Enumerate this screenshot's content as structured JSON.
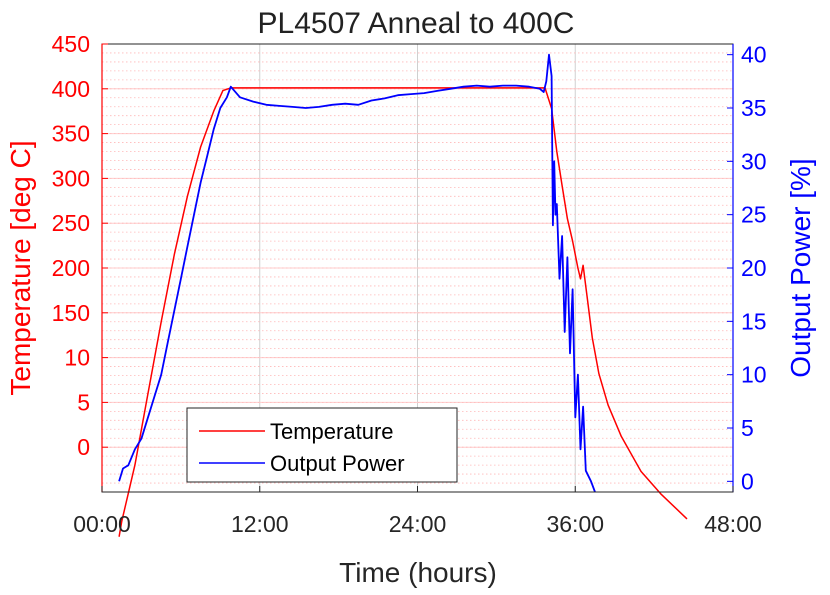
{
  "chart_data": {
    "type": "line",
    "title": "PL4507 Anneal to 400C",
    "xlabel": "Time (hours)",
    "xlim": [
      0,
      48
    ],
    "x_ticks": [
      0,
      12,
      24,
      36,
      48
    ],
    "x_tick_labels": [
      "00:00",
      "12:00",
      "24:00",
      "36:00",
      "48:00"
    ],
    "grid": true,
    "legend_position": "bottom-left",
    "left_axis": {
      "label": "Temperature [deg C]",
      "color": "#ff0000",
      "tick_labels": [
        "0",
        "5",
        "10",
        "150",
        "200",
        "250",
        "300",
        "350",
        "400",
        "450"
      ]
    },
    "right_axis": {
      "label": "Output Power [%]",
      "color": "#0000ff",
      "ylim": [
        -1,
        41
      ],
      "ticks": [
        0,
        5,
        10,
        15,
        20,
        25,
        30,
        35,
        40
      ],
      "tick_labels": [
        "0",
        "5",
        "10",
        "15",
        "20",
        "25",
        "30",
        "35",
        "40"
      ]
    },
    "series": [
      {
        "name": "Temperature",
        "color": "#ff0000",
        "axis": "left",
        "x": [
          1.3,
          1.5,
          2.5,
          3.5,
          4.5,
          5.5,
          6.5,
          7.5,
          8.5,
          9.2,
          9.8,
          12,
          18,
          24,
          30,
          33.7,
          34.2,
          34.6,
          35.0,
          35.4,
          35.8,
          36.2,
          36.4,
          36.6,
          36.9,
          37.3,
          37.8,
          38.5,
          39.5,
          41,
          42.5,
          44.5
        ],
        "values": [
          -100,
          -83,
          -20,
          60,
          140,
          215,
          280,
          335,
          375,
          398,
          401,
          401,
          401,
          401,
          401,
          401,
          378,
          330,
          292,
          255,
          230,
          200,
          188,
          203,
          168,
          122,
          82,
          47,
          12,
          -27,
          -52,
          -80
        ]
      },
      {
        "name": "Output Power",
        "color": "#0000ff",
        "axis": "right",
        "x": [
          1.3,
          1.6,
          2.0,
          2.5,
          3.0,
          3.5,
          4.0,
          4.5,
          5.0,
          5.5,
          6.0,
          6.5,
          7.0,
          7.5,
          8.0,
          8.5,
          9.0,
          9.5,
          9.8,
          10.5,
          11.5,
          12.5,
          13.5,
          14.5,
          15.5,
          16.5,
          17.5,
          18.5,
          19.5,
          20.5,
          21.5,
          22.5,
          23.5,
          24.5,
          25.5,
          26.5,
          27.5,
          28.5,
          29.5,
          30.5,
          31.5,
          32.5,
          33.3,
          33.6,
          33.8,
          34.0,
          34.2,
          34.3,
          34.4,
          34.5,
          34.6,
          34.8,
          35.0,
          35.2,
          35.4,
          35.6,
          35.8,
          36.0,
          36.2,
          36.4,
          36.6,
          36.8,
          37.2,
          37.5
        ],
        "values": [
          0,
          1.2,
          1.5,
          3,
          4,
          6,
          8,
          10,
          13,
          16,
          19,
          22,
          25,
          28,
          30.5,
          33,
          35,
          36,
          37,
          36,
          35.6,
          35.3,
          35.2,
          35.1,
          35.0,
          35.1,
          35.3,
          35.4,
          35.3,
          35.7,
          35.9,
          36.2,
          36.3,
          36.4,
          36.6,
          36.8,
          37.0,
          37.1,
          37.0,
          37.1,
          37.1,
          37.0,
          36.8,
          36.5,
          37.5,
          40,
          38,
          24,
          30,
          25,
          26,
          19,
          23,
          14,
          21,
          12,
          18,
          6,
          10,
          3,
          7,
          1,
          0,
          -1
        ]
      }
    ]
  }
}
